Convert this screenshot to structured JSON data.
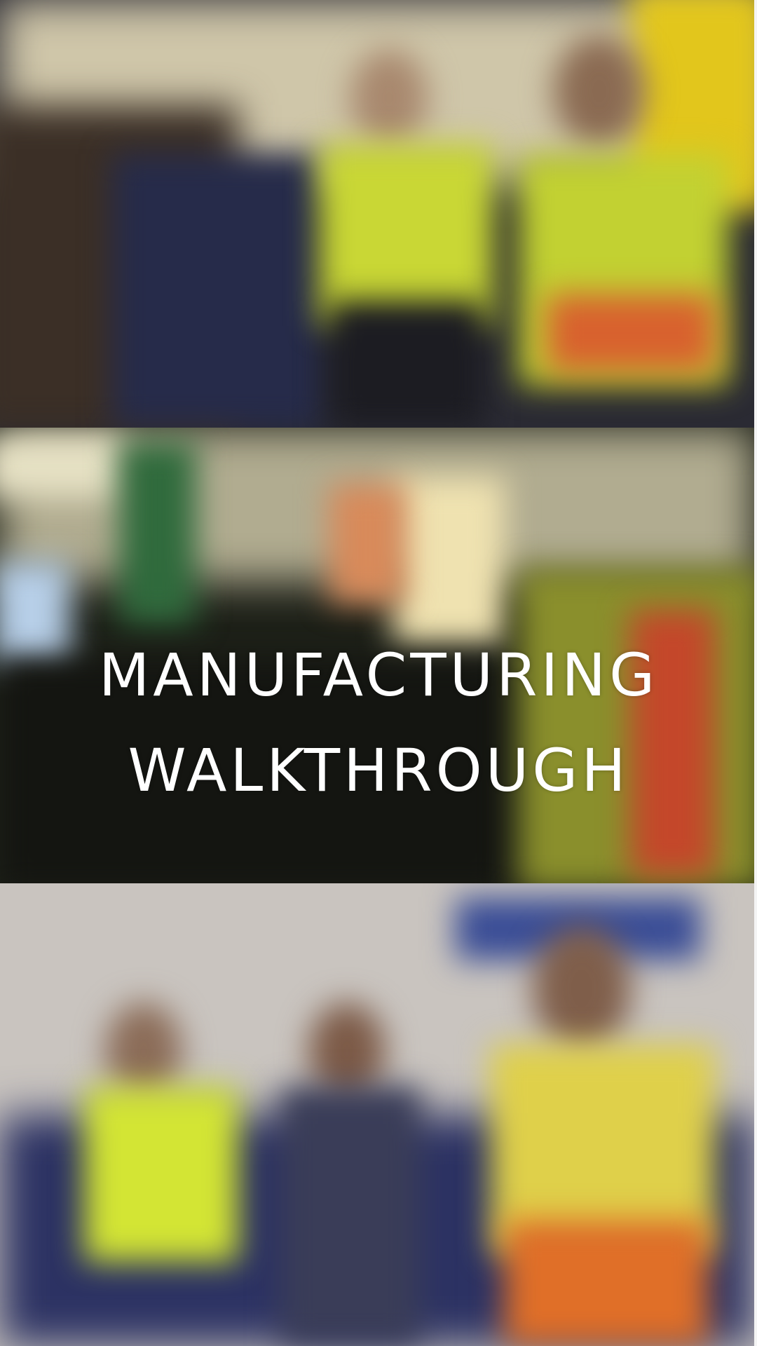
{
  "title": {
    "line1": "MANUFACTURING",
    "line2": "WALKTHROUGH"
  },
  "background": {
    "panels": [
      "blurred-photo-top",
      "blurred-photo-middle",
      "blurred-photo-bottom"
    ],
    "vest_colors": [
      "#d8e83a",
      "#e0632a",
      "#ffd22a"
    ]
  }
}
